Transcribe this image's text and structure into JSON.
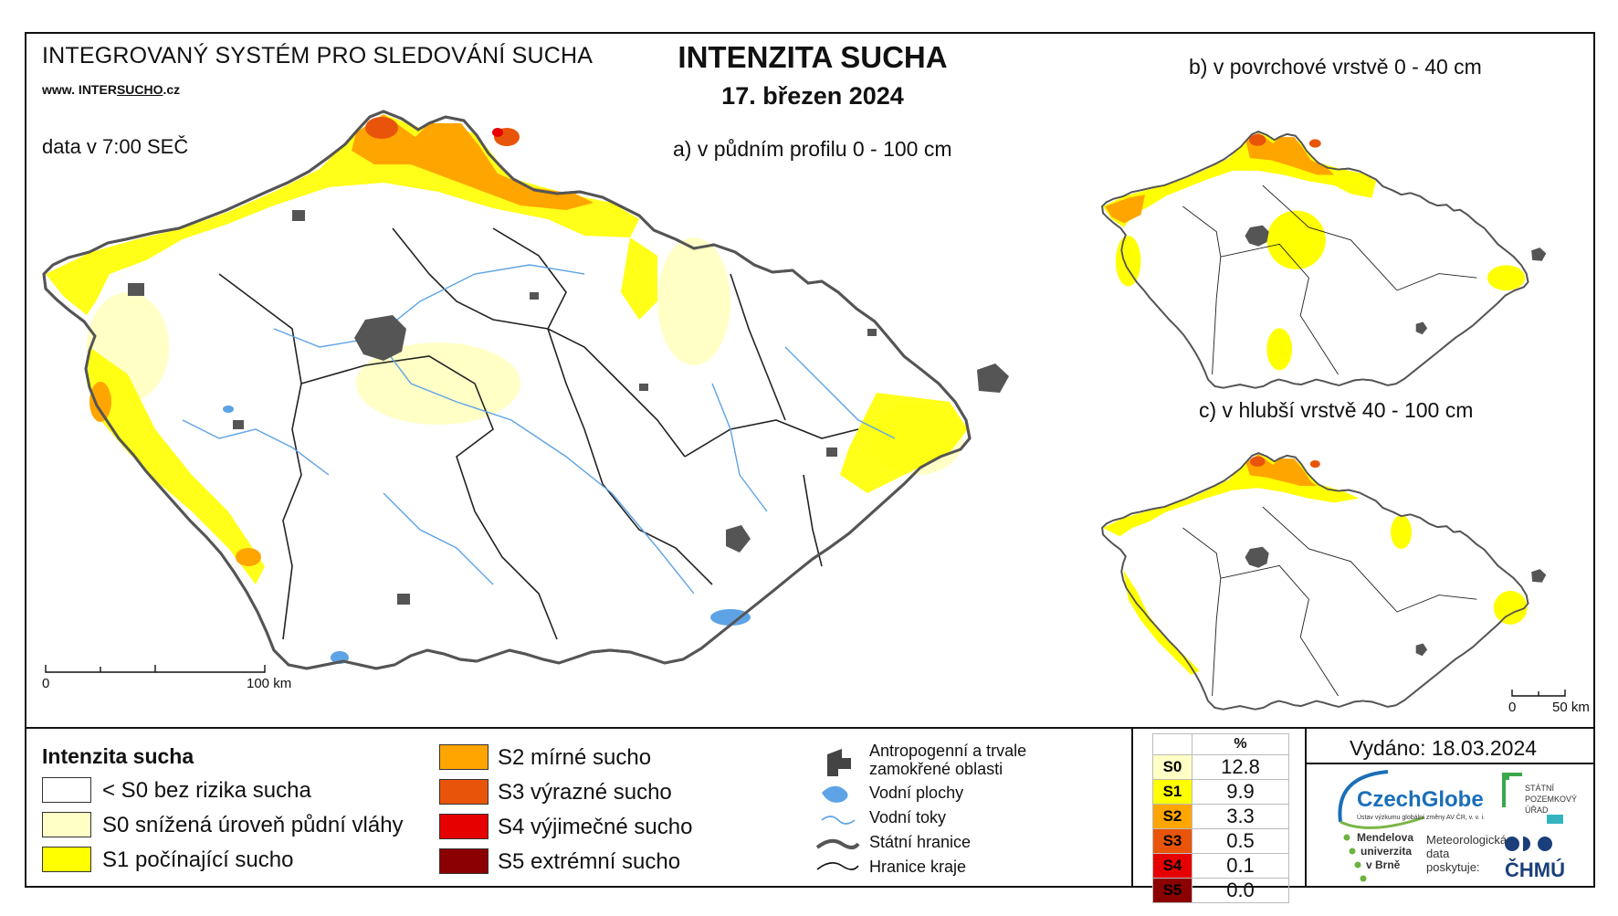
{
  "header": {
    "system_name": "INTEGROVANÝ SYSTÉM PRO SLEDOVÁNÍ SUCHA",
    "website_prefix": "www. INTER",
    "website_mid": "SUCHO",
    "website_suffix": ".cz",
    "data_time": "data v 7:00 SEČ",
    "title": "INTENZITA SUCHA",
    "date": "17. březen 2024"
  },
  "maps": {
    "a_label": "a) v půdním profilu 0 - 100 cm",
    "b_label": "b) v povrchové vrstvě 0 - 40 cm",
    "c_label": "c) v hlubší vrstvě 40 - 100 cm",
    "scale_main": {
      "start": "0",
      "end": "100 km"
    },
    "scale_small": {
      "start": "0",
      "end": "50 km"
    }
  },
  "legend": {
    "title": "Intenzita sucha",
    "classes": [
      {
        "label": "< S0 bez rizika sucha",
        "color": "#ffffff"
      },
      {
        "label": "S0 snížená úroveň půdní vláhy",
        "color": "#ffffc6"
      },
      {
        "label": "S1 počínající sucho",
        "color": "#ffff00"
      },
      {
        "label": "S2 mírné sucho",
        "color": "#ffa500"
      },
      {
        "label": "S3 výrazné sucho",
        "color": "#e8550a"
      },
      {
        "label": "S4 výjimečné sucho",
        "color": "#e60000"
      },
      {
        "label": "S5 extrémní sucho",
        "color": "#8b0000"
      }
    ],
    "features": [
      {
        "label_line1": "Antropogenní a trvale",
        "label_line2": "zamokřené oblasti",
        "icon": "urban-area-icon"
      },
      {
        "label_line1": "Vodní plochy",
        "icon": "water-body-icon"
      },
      {
        "label_line1": "Vodní toky",
        "icon": "river-icon"
      },
      {
        "label_line1": "Státní hranice",
        "icon": "state-border-icon"
      },
      {
        "label_line1": "Hranice kraje",
        "icon": "region-border-icon"
      }
    ]
  },
  "percent_table": {
    "header": "%",
    "rows": [
      {
        "code": "S0",
        "value": "12.8",
        "color": "#ffffc6",
        "text_color": "#000000"
      },
      {
        "code": "S1",
        "value": "9.9",
        "color": "#ffff00",
        "text_color": "#000000"
      },
      {
        "code": "S2",
        "value": "3.3",
        "color": "#ffa500",
        "text_color": "#000000"
      },
      {
        "code": "S3",
        "value": "0.5",
        "color": "#e8550a",
        "text_color": "#000000"
      },
      {
        "code": "S4",
        "value": "0.1",
        "color": "#e60000",
        "text_color": "#000000"
      },
      {
        "code": "S5",
        "value": "0.0",
        "color": "#8b0000",
        "text_color": "#000000"
      }
    ]
  },
  "footer": {
    "issued": "Vydáno: 18.03.2024",
    "czechglobe": "CzechGlobe",
    "czechglobe_sub": "Ústav výzkumu globální změny AV ČR, v. v. i.",
    "spu_line1": "STÁTNÍ",
    "spu_line2": "POZEMKOVÝ",
    "spu_line3": "ÚŘAD",
    "mendel_line1": "Mendelova",
    "mendel_line2": "univerzita",
    "mendel_line3": "v Brně",
    "met_line1": "Meteorologická",
    "met_line2": "data",
    "met_line3": "poskytuje:",
    "chmu": "ČHMÚ"
  }
}
